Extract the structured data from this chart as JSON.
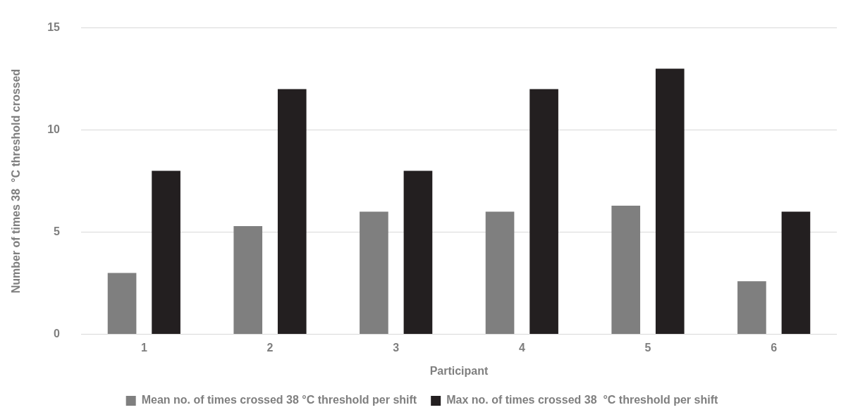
{
  "chart_data": {
    "type": "bar",
    "xlabel": "Participant",
    "ylabel": "Number of times 38  °C threshold crossed",
    "categories": [
      "1",
      "2",
      "3",
      "4",
      "5",
      "6"
    ],
    "series": [
      {
        "name": "Mean no. of times crossed 38 °C threshold per shift",
        "color": "#7f7f7f",
        "values": [
          3.0,
          5.3,
          6.0,
          6.0,
          6.3,
          2.6
        ]
      },
      {
        "name": "Max no. of times crossed 38  °C threshold per shift",
        "color": "#231f20",
        "values": [
          8,
          12,
          8,
          12,
          13,
          6
        ]
      }
    ],
    "ylim": [
      0,
      15
    ],
    "yticks": [
      0,
      5,
      10,
      15
    ],
    "grid": "y",
    "legend": "bottom"
  }
}
